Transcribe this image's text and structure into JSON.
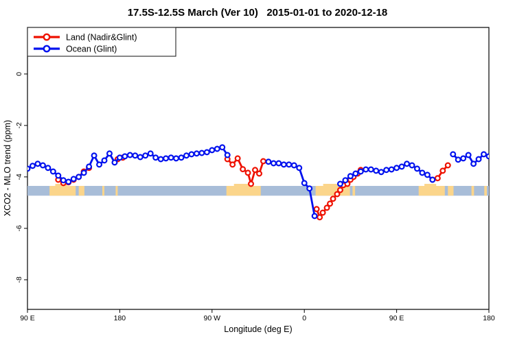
{
  "window": {
    "title": "17.5S-12.5S March (Ver 10)   2015-01-01 to 2020-12-18"
  },
  "chart_data": {
    "type": "line",
    "title": "17.5S-12.5S March (Ver 10)   2015-01-01 to 2020-12-18",
    "xlabel": "Longitude (deg E)",
    "ylabel": "XCO2 - MLO trend (ppm)",
    "xlim": [
      90,
      540
    ],
    "ylim": [
      -9.15,
      1.81
    ],
    "grid": false,
    "x_ticks": [
      {
        "pos": 90,
        "label": "90 E"
      },
      {
        "pos": 180,
        "label": "180"
      },
      {
        "pos": 270,
        "label": "90 W"
      },
      {
        "pos": 360,
        "label": "0"
      },
      {
        "pos": 450,
        "label": "90 E"
      },
      {
        "pos": 540,
        "label": "180"
      }
    ],
    "y_ticks": [
      {
        "pos": 0,
        "label": "0"
      },
      {
        "pos": -2,
        "label": "-2"
      },
      {
        "pos": -4,
        "label": "-4"
      },
      {
        "pos": -6,
        "label": "-6"
      },
      {
        "pos": -8,
        "label": "-8"
      }
    ],
    "legend": {
      "position": "top-left",
      "entries": [
        {
          "label": "Land (Nadir&Glint)",
          "color": "#ee1100"
        },
        {
          "label": "Ocean (Glint)",
          "color": "#0011ee"
        }
      ]
    },
    "map_band": {
      "ocean_color": "#a8bdd8",
      "land_color": "#fbd58b",
      "value_top": -4.35,
      "value_bottom": -4.73,
      "land_segments_lon": [
        [
          111.5,
          137
        ],
        [
          140,
          145.5
        ],
        [
          163,
          165
        ],
        [
          176,
          178
        ],
        [
          284,
          317.5
        ],
        [
          371,
          404.5
        ],
        [
          407,
          409.5
        ],
        [
          471.5,
          497
        ],
        [
          500,
          505.5
        ],
        [
          523,
          525.5
        ],
        [
          535.5,
          538
        ]
      ]
    },
    "series": [
      {
        "name": "Land (Nadir&Glint)",
        "slug": "land",
        "color": "#ee1100",
        "segments": [
          [
            [
              120,
              -4.11
            ],
            [
              125,
              -4.24
            ],
            [
              130,
              -4.21
            ],
            [
              135,
              -4.11
            ],
            [
              140,
              -4.0
            ],
            [
              145,
              -3.79
            ],
            [
              150,
              -3.65
            ]
          ],
          [
            [
              178,
              -3.31
            ],
            [
              183,
              -3.25
            ]
          ],
          [
            [
              285,
              -3.31
            ],
            [
              290,
              -3.52
            ],
            [
              295,
              -3.28
            ],
            [
              300,
              -3.7
            ],
            [
              305,
              -3.84
            ],
            [
              308,
              -4.27
            ],
            [
              312,
              -3.73
            ],
            [
              316,
              -3.87
            ],
            [
              320,
              -3.39
            ]
          ],
          [
            [
              372,
              -5.25
            ],
            [
              375,
              -5.57
            ],
            [
              378,
              -5.39
            ],
            [
              382,
              -5.2
            ],
            [
              385,
              -5.04
            ],
            [
              388,
              -4.85
            ],
            [
              392,
              -4.67
            ],
            [
              395,
              -4.51
            ],
            [
              398,
              -4.32
            ],
            [
              402,
              -4.27
            ],
            [
              405,
              -4.11
            ],
            [
              408,
              -4.0
            ],
            [
              412,
              -3.87
            ],
            [
              415,
              -3.73
            ]
          ],
          [
            [
              485,
              -4.11
            ],
            [
              490,
              -4.05
            ],
            [
              495,
              -3.76
            ],
            [
              500,
              -3.55
            ]
          ]
        ]
      },
      {
        "name": "Ocean (Glint)",
        "slug": "ocean",
        "color": "#0011ee",
        "segments": [
          [
            [
              90,
              -3.68
            ],
            [
              95,
              -3.57
            ],
            [
              100,
              -3.49
            ],
            [
              105,
              -3.55
            ],
            [
              110,
              -3.65
            ],
            [
              115,
              -3.79
            ],
            [
              120,
              -3.95
            ],
            [
              125,
              -4.13
            ],
            [
              130,
              -4.19
            ],
            [
              135,
              -4.08
            ],
            [
              140,
              -4.0
            ],
            [
              145,
              -3.84
            ],
            [
              150,
              -3.6
            ],
            [
              155,
              -3.17
            ],
            [
              160,
              -3.52
            ],
            [
              165,
              -3.36
            ],
            [
              170,
              -3.09
            ],
            [
              175,
              -3.44
            ],
            [
              180,
              -3.25
            ],
            [
              185,
              -3.2
            ],
            [
              190,
              -3.15
            ],
            [
              195,
              -3.17
            ],
            [
              200,
              -3.23
            ],
            [
              205,
              -3.17
            ],
            [
              210,
              -3.09
            ],
            [
              215,
              -3.25
            ],
            [
              220,
              -3.31
            ],
            [
              225,
              -3.28
            ],
            [
              230,
              -3.25
            ],
            [
              235,
              -3.28
            ],
            [
              240,
              -3.25
            ],
            [
              245,
              -3.17
            ],
            [
              250,
              -3.12
            ],
            [
              255,
              -3.09
            ],
            [
              260,
              -3.07
            ],
            [
              265,
              -3.04
            ],
            [
              270,
              -2.96
            ],
            [
              275,
              -2.91
            ],
            [
              280,
              -2.85
            ],
            [
              285,
              -3.15
            ]
          ],
          [
            [
              325,
              -3.41
            ],
            [
              330,
              -3.47
            ],
            [
              335,
              -3.47
            ],
            [
              340,
              -3.52
            ],
            [
              345,
              -3.52
            ],
            [
              350,
              -3.55
            ],
            [
              355,
              -3.65
            ],
            [
              360,
              -4.24
            ],
            [
              365,
              -4.45
            ],
            [
              370,
              -5.52
            ]
          ],
          [
            [
              395,
              -4.27
            ],
            [
              400,
              -4.13
            ],
            [
              405,
              -3.97
            ],
            [
              410,
              -3.87
            ],
            [
              415,
              -3.79
            ],
            [
              420,
              -3.71
            ],
            [
              425,
              -3.71
            ],
            [
              430,
              -3.76
            ],
            [
              435,
              -3.81
            ],
            [
              440,
              -3.73
            ],
            [
              445,
              -3.71
            ],
            [
              450,
              -3.65
            ],
            [
              455,
              -3.6
            ],
            [
              460,
              -3.49
            ],
            [
              465,
              -3.55
            ],
            [
              470,
              -3.68
            ],
            [
              475,
              -3.84
            ],
            [
              480,
              -3.92
            ],
            [
              485,
              -4.11
            ]
          ],
          [
            [
              505,
              -3.12
            ],
            [
              510,
              -3.33
            ],
            [
              515,
              -3.28
            ],
            [
              520,
              -3.15
            ],
            [
              525,
              -3.49
            ],
            [
              530,
              -3.31
            ],
            [
              535,
              -3.12
            ],
            [
              540,
              -3.2
            ]
          ]
        ]
      }
    ]
  }
}
